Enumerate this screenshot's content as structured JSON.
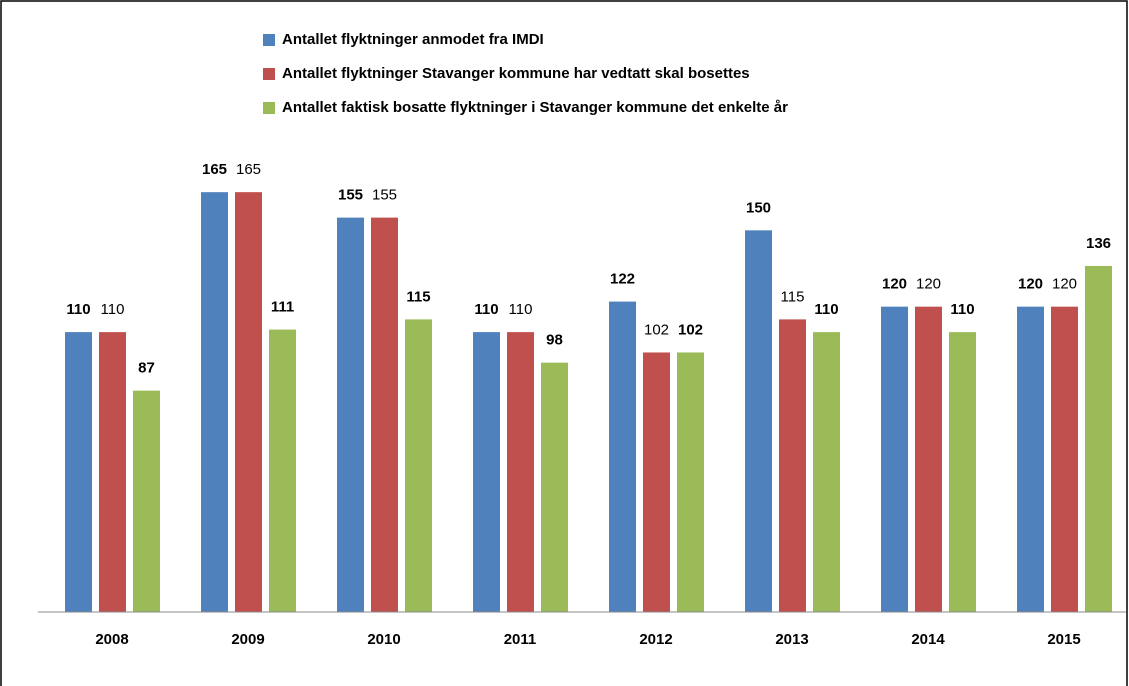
{
  "chart_data": {
    "type": "bar",
    "categories": [
      "2008",
      "2009",
      "2010",
      "2011",
      "2012",
      "2013",
      "2014",
      "2015"
    ],
    "series": [
      {
        "name": "Antallet flyktninger anmodet fra IMDI",
        "color": "#4f81bd",
        "values": [
          110,
          165,
          155,
          110,
          122,
          150,
          120,
          120
        ]
      },
      {
        "name": "Antallet flyktninger Stavanger kommune har vedtatt skal bosettes",
        "color": "#c0504d",
        "values": [
          110,
          165,
          155,
          110,
          102,
          115,
          120,
          120
        ]
      },
      {
        "name": "Antallet faktisk bosatte flyktninger i Stavanger kommune det enkelte år",
        "color": "#9bbb59",
        "values": [
          87,
          111,
          115,
          98,
          102,
          110,
          110,
          136
        ]
      }
    ],
    "ylim": [
      0,
      180
    ]
  }
}
